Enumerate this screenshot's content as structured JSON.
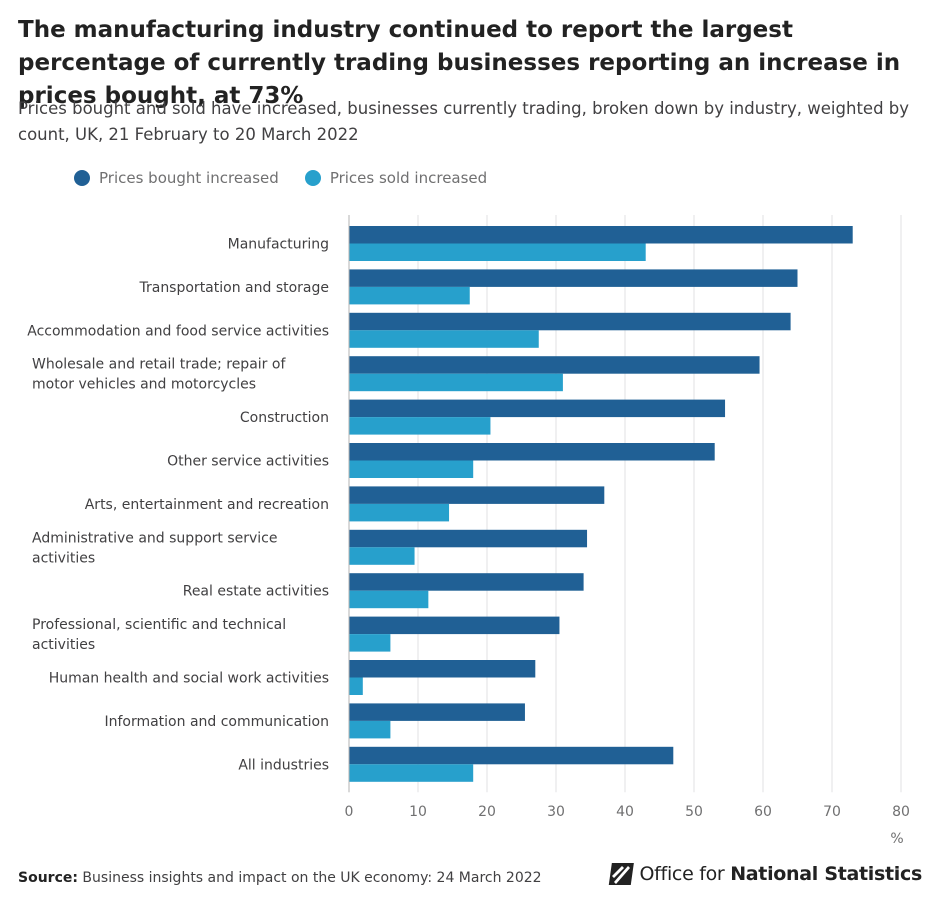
{
  "title": "The manufacturing industry continued to report the largest percentage of currently trading businesses reporting an increase in prices bought, at 73%",
  "subtitle": "Prices bought and sold have increased, businesses currently trading, broken down by industry, weighted by count, UK, 21 February to 20 March 2022",
  "colors": {
    "bought": "#206095",
    "sold": "#27a0cc",
    "grid": "#e2e2e3",
    "axis_text": "#707071",
    "label_text": "#414042"
  },
  "chart_data": {
    "type": "bar",
    "orientation": "horizontal",
    "categories": [
      "Manufacturing",
      "Transportation and storage",
      "Accommodation and food service activities",
      "Wholesale and retail trade; repair of motor vehicles and motorcycles",
      "Construction",
      "Other service activities",
      "Arts, entertainment and recreation",
      "Administrative and support service activities",
      "Real estate activities",
      "Professional, scientific and technical activities",
      "Human health and social work activities",
      "Information and communication",
      "All industries"
    ],
    "series": [
      {
        "name": "Prices bought increased",
        "color": "#206095",
        "values": [
          73,
          65,
          64,
          59.5,
          54.5,
          53,
          37,
          34.5,
          34,
          30.5,
          27,
          25.5,
          47
        ]
      },
      {
        "name": "Prices sold increased",
        "color": "#27a0cc",
        "values": [
          43,
          17.5,
          27.5,
          31,
          20.5,
          18,
          14.5,
          9.5,
          11.5,
          6,
          2,
          6,
          18
        ]
      }
    ],
    "xlim": [
      0,
      80
    ],
    "xticks": [
      0,
      10,
      20,
      30,
      40,
      50,
      60,
      70,
      80
    ],
    "xunit": "%",
    "grid": true,
    "legend_position": "top-left"
  },
  "source": {
    "label": "Source:",
    "text": "Business insights and impact on the UK economy: 24 March 2022"
  },
  "logo": {
    "prefix": "Office for",
    "name": "National Statistics"
  }
}
